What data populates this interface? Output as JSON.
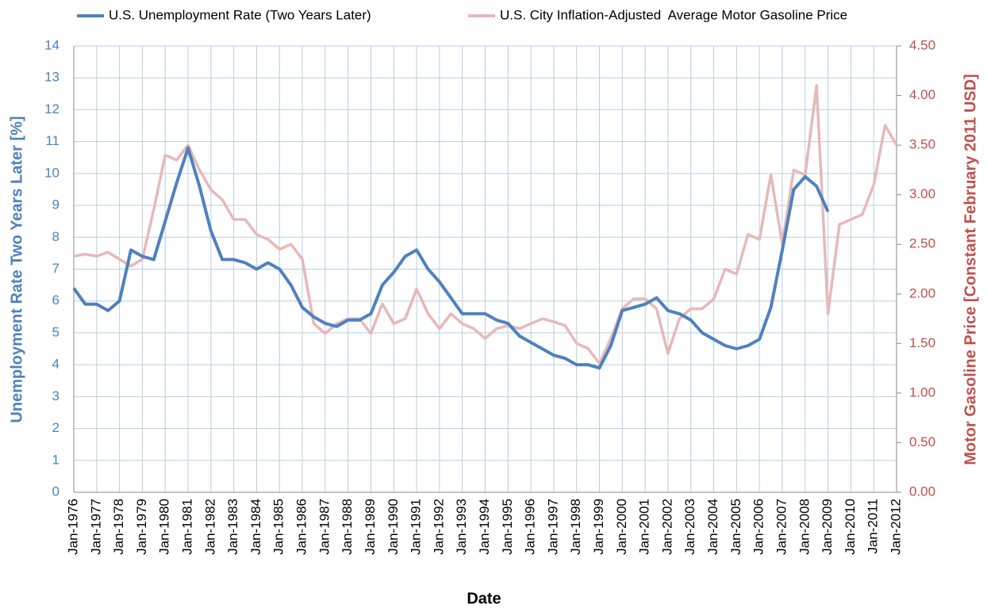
{
  "chart_data": {
    "type": "line",
    "x_label": "Date",
    "y_label": "Unemployment Rate Two Years Later [%]",
    "y2_label": "Motor Gasoline Price [Constant February 2011 USD]",
    "categories": [
      "Jan-1976",
      null,
      "Jan-1977",
      null,
      "Jan-1978",
      null,
      "Jan-1979",
      null,
      "Jan-1980",
      null,
      "Jan-1981",
      null,
      "Jan-1982",
      null,
      "Jan-1983",
      null,
      "Jan-1984",
      null,
      "Jan-1985",
      null,
      "Jan-1986",
      null,
      "Jan-1987",
      null,
      "Jan-1988",
      null,
      "Jan-1989",
      null,
      "Jan-1990",
      null,
      "Jan-1991",
      null,
      "Jan-1992",
      null,
      "Jan-1993",
      null,
      "Jan-1994",
      null,
      "Jan-1995",
      null,
      "Jan-1996",
      null,
      "Jan-1997",
      null,
      "Jan-1998",
      null,
      "Jan-1999",
      null,
      "Jan-2000",
      null,
      "Jan-2001",
      null,
      "Jan-2002",
      null,
      "Jan-2003",
      null,
      "Jan-2004",
      null,
      "Jan-2005",
      null,
      "Jan-2006",
      null,
      "Jan-2007",
      null,
      "Jan-2008",
      null,
      "Jan-2009",
      null,
      "Jan-2010",
      null,
      "Jan-2011",
      null,
      "Jan-2012"
    ],
    "series": [
      {
        "name": "U.S. Unemployment Rate (Two Years Later)",
        "color": "#4f81bd",
        "axis": "y",
        "values": [
          6.4,
          5.9,
          5.9,
          5.7,
          6.0,
          7.6,
          7.4,
          7.3,
          8.5,
          9.7,
          10.8,
          9.6,
          8.2,
          7.3,
          7.3,
          7.2,
          7.0,
          7.2,
          7.0,
          6.5,
          5.8,
          5.5,
          5.3,
          5.2,
          5.4,
          5.4,
          5.6,
          6.5,
          6.9,
          7.4,
          7.6,
          7.0,
          6.6,
          6.1,
          5.6,
          5.6,
          5.6,
          5.4,
          5.3,
          4.9,
          4.7,
          4.5,
          4.3,
          4.2,
          4.0,
          4.0,
          3.9,
          4.6,
          5.7,
          5.8,
          5.9,
          6.1,
          5.7,
          5.6,
          5.4,
          5.0,
          4.8,
          4.6,
          4.5,
          4.6,
          4.8,
          5.8,
          7.6,
          9.5,
          9.9,
          9.6,
          8.8,
          null,
          null,
          null,
          null,
          null,
          null
        ]
      },
      {
        "name": "U.S. City Inflation-Adjusted  Average Motor Gasoline Price",
        "color": "#e6b9b8",
        "axis": "y2",
        "values": [
          2.38,
          2.4,
          2.38,
          2.42,
          2.35,
          2.28,
          2.35,
          2.85,
          3.4,
          3.35,
          3.5,
          3.25,
          3.05,
          2.95,
          2.75,
          2.75,
          2.6,
          2.55,
          2.45,
          2.5,
          2.35,
          1.7,
          1.6,
          1.7,
          1.75,
          1.75,
          1.6,
          1.9,
          1.7,
          1.75,
          2.05,
          1.8,
          1.65,
          1.8,
          1.7,
          1.65,
          1.55,
          1.65,
          1.68,
          1.65,
          1.7,
          1.75,
          1.72,
          1.68,
          1.5,
          1.45,
          1.3,
          1.55,
          1.85,
          1.95,
          1.95,
          1.85,
          1.4,
          1.75,
          1.85,
          1.85,
          1.95,
          2.25,
          2.2,
          2.6,
          2.55,
          3.2,
          2.5,
          3.25,
          3.2,
          4.1,
          1.8,
          2.7,
          2.75,
          2.8,
          3.1,
          3.7,
          3.5
        ]
      }
    ],
    "ylim": [
      0,
      14
    ],
    "yticks": [
      0,
      1,
      2,
      3,
      4,
      5,
      6,
      7,
      8,
      9,
      10,
      11,
      12,
      13,
      14
    ],
    "y2lim": [
      0,
      4.5
    ],
    "y2ticks": [
      {
        "value": 0,
        "label": "0.00"
      },
      {
        "value": 0.5,
        "label": "0.50"
      },
      {
        "value": 1,
        "label": "1.00"
      },
      {
        "value": 1.5,
        "label": "1.50"
      },
      {
        "value": 2,
        "label": "2.00"
      },
      {
        "value": 2.5,
        "label": "2.50"
      },
      {
        "value": 3,
        "label": "3.00"
      },
      {
        "value": 3.5,
        "label": "3.50"
      },
      {
        "value": 4,
        "label": "4.00"
      },
      {
        "value": 4.5,
        "label": "4.50"
      }
    ],
    "grid": true,
    "legend": "top"
  }
}
